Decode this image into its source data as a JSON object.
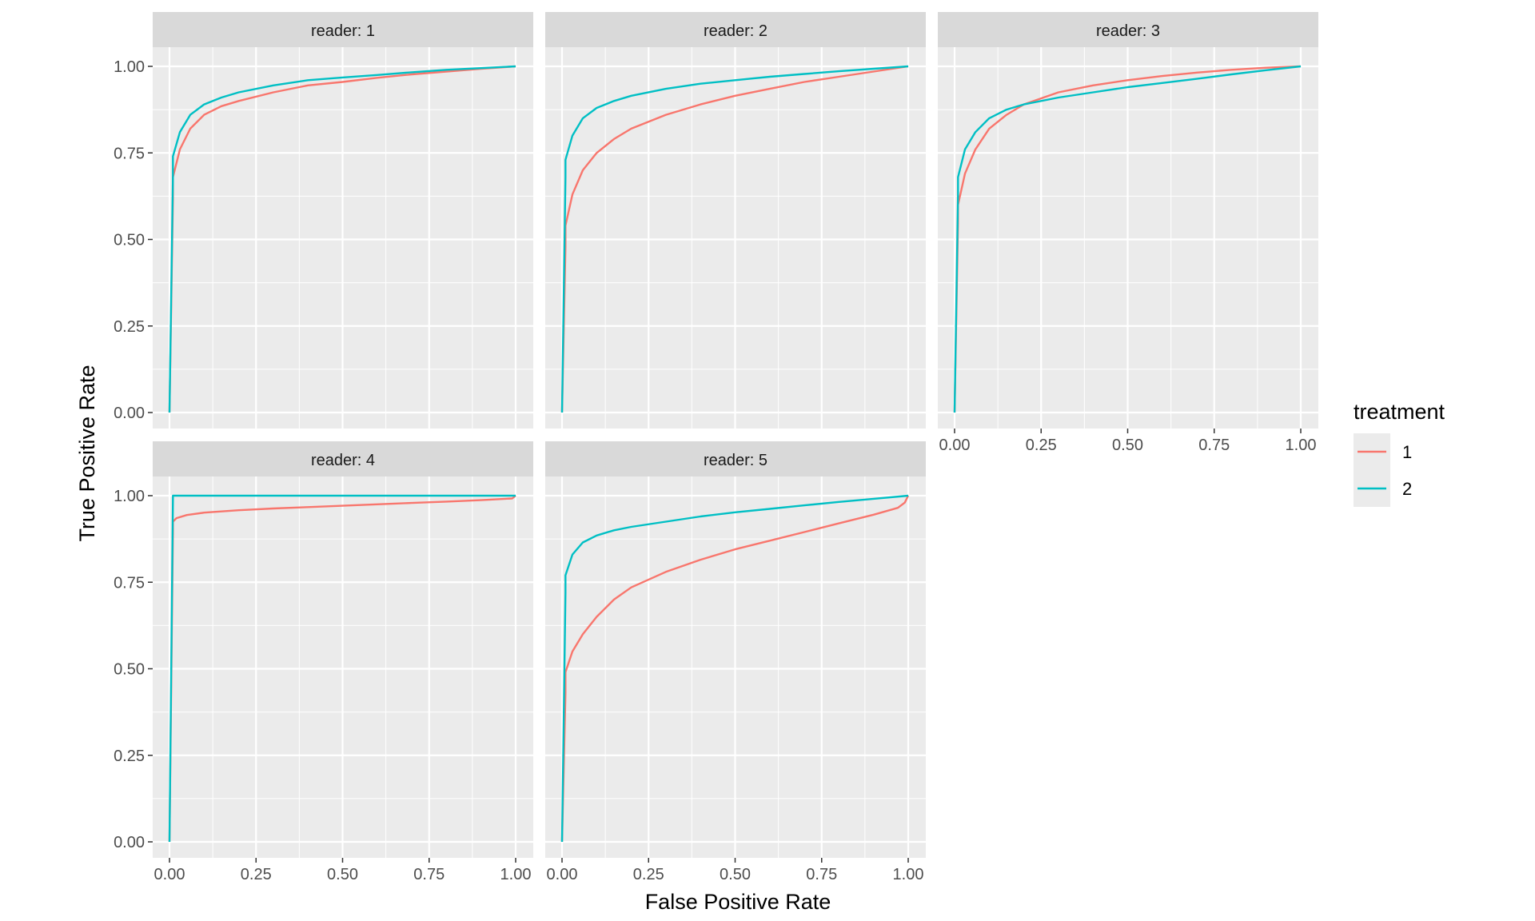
{
  "chart_data": {
    "type": "line",
    "xlabel": "False Positive Rate",
    "ylabel": "True Positive Rate",
    "xlim": [
      0,
      1
    ],
    "ylim": [
      0,
      1
    ],
    "x_ticks": [
      "0.00",
      "0.25",
      "0.50",
      "0.75",
      "1.00"
    ],
    "y_ticks": [
      "0.00",
      "0.25",
      "0.50",
      "0.75",
      "1.00"
    ],
    "grid": true,
    "legend": {
      "title": "treatment",
      "position": "right",
      "entries": [
        "1",
        "2"
      ]
    },
    "colors": {
      "1": "#F8766D",
      "2": "#00BFC4"
    },
    "panels": [
      {
        "strip": "reader: 1",
        "series": [
          {
            "name": "1",
            "x": [
              0,
              0.01,
              0.01,
              0.03,
              0.06,
              0.1,
              0.15,
              0.2,
              0.3,
              0.4,
              0.5,
              0.6,
              0.7,
              0.8,
              0.9,
              1.0
            ],
            "y": [
              0,
              0.62,
              0.68,
              0.76,
              0.82,
              0.86,
              0.885,
              0.9,
              0.925,
              0.945,
              0.955,
              0.967,
              0.977,
              0.985,
              0.993,
              1.0
            ]
          },
          {
            "name": "2",
            "x": [
              0,
              0.01,
              0.01,
              0.03,
              0.06,
              0.1,
              0.15,
              0.2,
              0.3,
              0.4,
              0.5,
              0.6,
              0.7,
              0.8,
              0.9,
              1.0
            ],
            "y": [
              0,
              0.68,
              0.74,
              0.81,
              0.86,
              0.89,
              0.91,
              0.925,
              0.945,
              0.96,
              0.968,
              0.975,
              0.983,
              0.99,
              0.995,
              1.0
            ]
          }
        ]
      },
      {
        "strip": "reader: 2",
        "series": [
          {
            "name": "1",
            "x": [
              0,
              0.01,
              0.01,
              0.03,
              0.06,
              0.1,
              0.15,
              0.2,
              0.3,
              0.4,
              0.5,
              0.6,
              0.7,
              0.8,
              0.9,
              1.0
            ],
            "y": [
              0,
              0.48,
              0.54,
              0.63,
              0.7,
              0.75,
              0.79,
              0.82,
              0.86,
              0.89,
              0.915,
              0.935,
              0.955,
              0.97,
              0.985,
              1.0
            ]
          },
          {
            "name": "2",
            "x": [
              0,
              0.01,
              0.01,
              0.03,
              0.06,
              0.1,
              0.15,
              0.2,
              0.3,
              0.4,
              0.5,
              0.6,
              0.7,
              0.8,
              0.9,
              1.0
            ],
            "y": [
              0,
              0.68,
              0.73,
              0.8,
              0.85,
              0.88,
              0.9,
              0.915,
              0.935,
              0.95,
              0.96,
              0.97,
              0.978,
              0.986,
              0.993,
              1.0
            ]
          }
        ]
      },
      {
        "strip": "reader: 3",
        "series": [
          {
            "name": "1",
            "x": [
              0,
              0.01,
              0.01,
              0.03,
              0.06,
              0.1,
              0.15,
              0.2,
              0.3,
              0.4,
              0.5,
              0.6,
              0.7,
              0.8,
              0.9,
              1.0
            ],
            "y": [
              0,
              0.55,
              0.6,
              0.69,
              0.76,
              0.82,
              0.86,
              0.89,
              0.925,
              0.945,
              0.96,
              0.972,
              0.982,
              0.99,
              0.996,
              1.0
            ]
          },
          {
            "name": "2",
            "x": [
              0,
              0.01,
              0.01,
              0.03,
              0.06,
              0.1,
              0.15,
              0.2,
              0.3,
              0.4,
              0.5,
              0.6,
              0.7,
              0.8,
              0.9,
              1.0
            ],
            "y": [
              0,
              0.63,
              0.68,
              0.76,
              0.81,
              0.85,
              0.875,
              0.89,
              0.91,
              0.925,
              0.94,
              0.952,
              0.964,
              0.977,
              0.989,
              1.0
            ]
          }
        ]
      },
      {
        "strip": "reader: 4",
        "series": [
          {
            "name": "1",
            "x": [
              0,
              0.01,
              0.01,
              0.02,
              0.05,
              0.1,
              0.2,
              0.3,
              0.4,
              0.5,
              0.6,
              0.7,
              0.8,
              0.9,
              0.97,
              0.99,
              1.0
            ],
            "y": [
              0,
              0.9,
              0.925,
              0.935,
              0.944,
              0.951,
              0.958,
              0.963,
              0.967,
              0.971,
              0.975,
              0.979,
              0.983,
              0.987,
              0.991,
              0.992,
              1.0
            ]
          },
          {
            "name": "2",
            "x": [
              0,
              0.01,
              0.01,
              1.0
            ],
            "y": [
              0,
              0.99,
              1.0,
              1.0
            ]
          }
        ]
      },
      {
        "strip": "reader: 5",
        "series": [
          {
            "name": "1",
            "x": [
              0,
              0.01,
              0.01,
              0.03,
              0.06,
              0.1,
              0.15,
              0.2,
              0.3,
              0.4,
              0.5,
              0.6,
              0.7,
              0.8,
              0.9,
              0.97,
              0.99,
              1.0
            ],
            "y": [
              0,
              0.43,
              0.49,
              0.55,
              0.6,
              0.65,
              0.7,
              0.735,
              0.78,
              0.815,
              0.845,
              0.87,
              0.895,
              0.92,
              0.945,
              0.965,
              0.98,
              1.0
            ]
          },
          {
            "name": "2",
            "x": [
              0,
              0.01,
              0.01,
              0.03,
              0.06,
              0.1,
              0.15,
              0.2,
              0.3,
              0.4,
              0.5,
              0.6,
              0.7,
              0.8,
              0.9,
              1.0
            ],
            "y": [
              0,
              0.72,
              0.77,
              0.83,
              0.865,
              0.885,
              0.9,
              0.91,
              0.925,
              0.94,
              0.952,
              0.962,
              0.972,
              0.982,
              0.991,
              1.0
            ]
          }
        ]
      }
    ]
  }
}
